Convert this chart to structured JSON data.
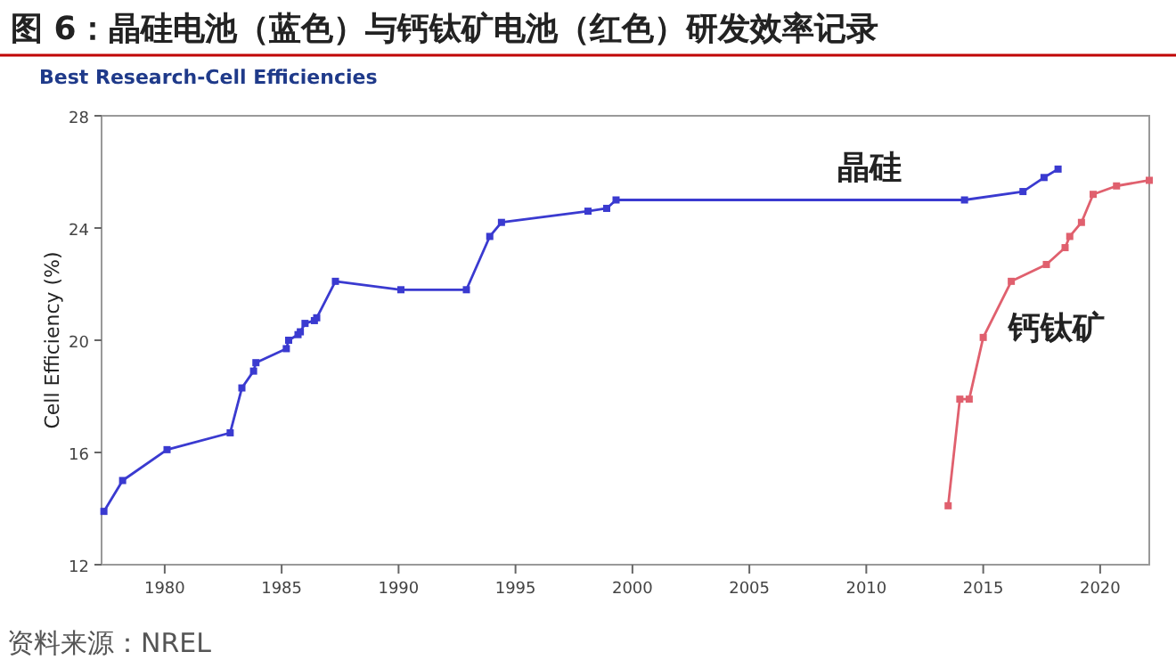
{
  "chart_data": {
    "type": "line",
    "title": "图 6：晶硅电池（蓝色）与钙钛矿电池（红色）研发效率记录",
    "subtitle": "Best Research-Cell Efficiencies",
    "ylabel": "Cell Efficiency (%)",
    "xlim": [
      1977.3,
      2022.1
    ],
    "xticks": [
      1980,
      1985,
      1990,
      1995,
      2000,
      2005,
      2010,
      2015,
      2020
    ],
    "ylim": [
      12,
      28
    ],
    "yticks": [
      12,
      16,
      20,
      24,
      28
    ],
    "marker": "square",
    "grid": false,
    "series": [
      {
        "name": "晶硅",
        "color": "#3a3ad0",
        "x": [
          1977.4,
          1978.2,
          1980.1,
          1982.8,
          1983.3,
          1983.8,
          1983.9,
          1985.2,
          1985.3,
          1985.7,
          1985.8,
          1986.0,
          1986.4,
          1986.5,
          1987.3,
          1990.1,
          1992.9,
          1993.9,
          1994.4,
          1998.1,
          1998.9,
          1999.3,
          2014.2,
          2016.7,
          2017.6,
          2018.2
        ],
        "values": [
          13.9,
          15.0,
          16.1,
          16.7,
          18.3,
          18.9,
          19.2,
          19.7,
          20.0,
          20.2,
          20.3,
          20.6,
          20.7,
          20.8,
          22.1,
          21.8,
          21.8,
          23.7,
          24.2,
          24.6,
          24.7,
          25.0,
          25.0,
          25.3,
          25.8,
          26.1
        ]
      },
      {
        "name": "钙钛矿",
        "color": "#e0606e",
        "x": [
          2013.5,
          2014.0,
          2014.4,
          2015.0,
          2016.2,
          2017.7,
          2018.5,
          2018.7,
          2019.2,
          2019.7,
          2020.7,
          2022.1
        ],
        "values": [
          14.1,
          17.9,
          17.9,
          20.1,
          22.1,
          22.7,
          23.3,
          23.7,
          24.2,
          25.2,
          25.5,
          25.7
        ]
      }
    ],
    "annotations": [
      "资料来源：NREL"
    ]
  }
}
